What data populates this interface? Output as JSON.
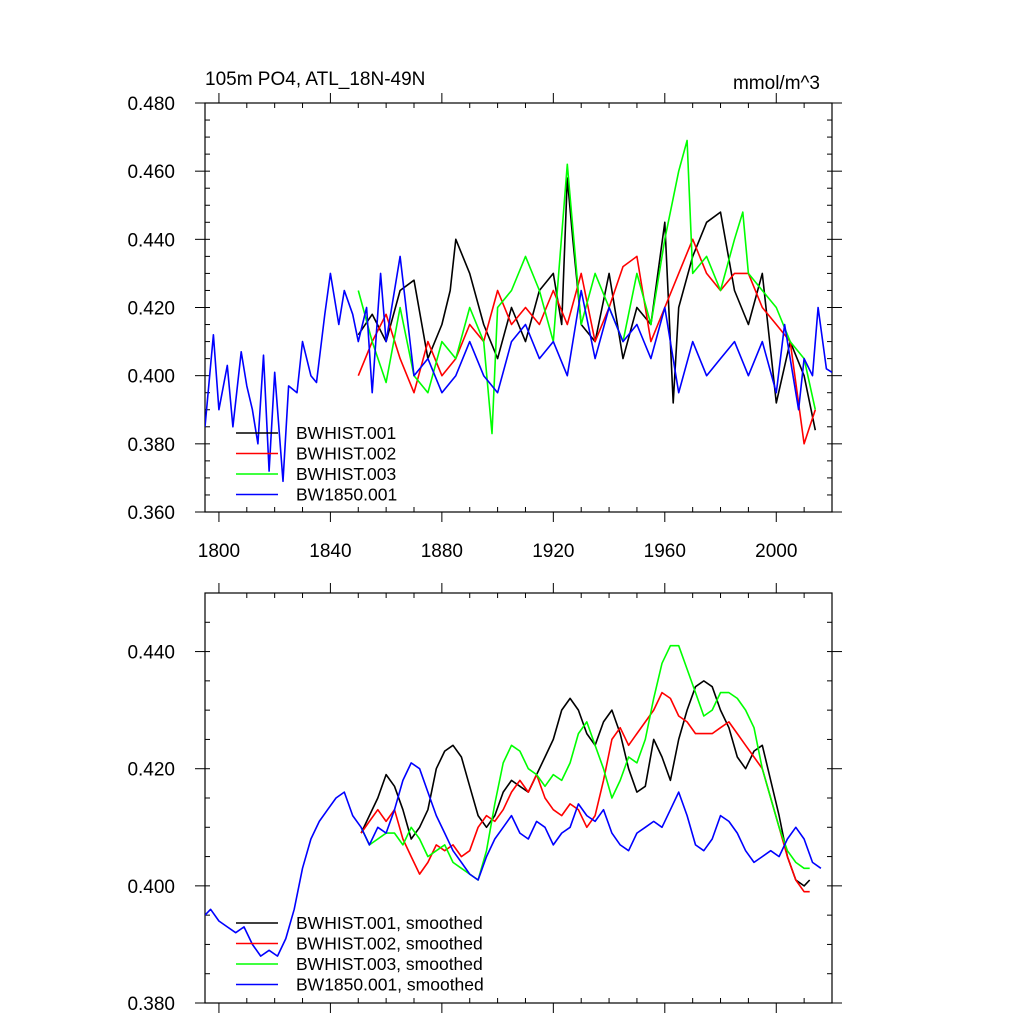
{
  "chart_data": [
    {
      "type": "line",
      "title": "105m PO4, ATL_18N-49N",
      "units": "mmol/m^3",
      "xlim": [
        1795,
        2020
      ],
      "ylim": [
        0.36,
        0.48
      ],
      "xticks": [
        1800,
        1840,
        1880,
        1920,
        1960,
        2000
      ],
      "yticks": [
        0.36,
        0.38,
        0.4,
        0.42,
        0.44,
        0.46,
        0.48
      ],
      "xtick_labels": [
        "1800",
        "1840",
        "1880",
        "1920",
        "1960",
        "2000"
      ],
      "ytick_labels": [
        "0.360",
        "0.380",
        "0.400",
        "0.420",
        "0.440",
        "0.460",
        "0.480"
      ],
      "legend_location": "lower-left",
      "series": [
        {
          "name": "BWHIST.001",
          "color": "#000000",
          "x": [
            1850,
            1855,
            1860,
            1865,
            1870,
            1875,
            1880,
            1883,
            1885,
            1890,
            1895,
            1900,
            1905,
            1910,
            1915,
            1920,
            1923,
            1925,
            1927,
            1930,
            1935,
            1940,
            1945,
            1950,
            1955,
            1960,
            1963,
            1965,
            1970,
            1975,
            1980,
            1985,
            1990,
            1995,
            2000,
            2005,
            2010,
            2014
          ],
          "y": [
            0.412,
            0.418,
            0.41,
            0.425,
            0.428,
            0.405,
            0.415,
            0.425,
            0.44,
            0.43,
            0.415,
            0.405,
            0.42,
            0.41,
            0.425,
            0.43,
            0.415,
            0.458,
            0.44,
            0.415,
            0.41,
            0.43,
            0.405,
            0.42,
            0.415,
            0.445,
            0.392,
            0.42,
            0.435,
            0.445,
            0.448,
            0.425,
            0.415,
            0.43,
            0.392,
            0.41,
            0.4,
            0.384
          ]
        },
        {
          "name": "BWHIST.002",
          "color": "#ff0000",
          "x": [
            1850,
            1855,
            1860,
            1865,
            1870,
            1875,
            1880,
            1885,
            1890,
            1895,
            1900,
            1905,
            1910,
            1915,
            1920,
            1925,
            1930,
            1935,
            1940,
            1945,
            1950,
            1955,
            1960,
            1965,
            1970,
            1975,
            1980,
            1985,
            1990,
            1995,
            2000,
            2005,
            2010,
            2014
          ],
          "y": [
            0.4,
            0.41,
            0.418,
            0.405,
            0.395,
            0.41,
            0.4,
            0.405,
            0.415,
            0.41,
            0.425,
            0.415,
            0.42,
            0.415,
            0.425,
            0.415,
            0.43,
            0.41,
            0.42,
            0.432,
            0.435,
            0.41,
            0.42,
            0.43,
            0.44,
            0.43,
            0.425,
            0.43,
            0.43,
            0.42,
            0.415,
            0.41,
            0.38,
            0.39
          ]
        },
        {
          "name": "BWHIST.003",
          "color": "#00ff00",
          "x": [
            1850,
            1855,
            1860,
            1865,
            1870,
            1875,
            1880,
            1885,
            1890,
            1895,
            1898,
            1900,
            1905,
            1910,
            1915,
            1920,
            1925,
            1930,
            1935,
            1940,
            1945,
            1950,
            1955,
            1960,
            1965,
            1968,
            1970,
            1975,
            1980,
            1985,
            1988,
            1990,
            1995,
            2000,
            2005,
            2010,
            2014
          ],
          "y": [
            0.425,
            0.41,
            0.398,
            0.42,
            0.4,
            0.395,
            0.41,
            0.405,
            0.42,
            0.41,
            0.383,
            0.42,
            0.425,
            0.435,
            0.425,
            0.41,
            0.462,
            0.415,
            0.43,
            0.42,
            0.41,
            0.43,
            0.415,
            0.44,
            0.46,
            0.469,
            0.43,
            0.435,
            0.425,
            0.44,
            0.448,
            0.43,
            0.425,
            0.42,
            0.41,
            0.405,
            0.39
          ]
        },
        {
          "name": "BW1850.001",
          "color": "#0000ff",
          "x": [
            1795,
            1798,
            1800,
            1803,
            1805,
            1808,
            1810,
            1812,
            1814,
            1816,
            1818,
            1820,
            1823,
            1825,
            1828,
            1830,
            1833,
            1835,
            1838,
            1840,
            1843,
            1845,
            1848,
            1850,
            1853,
            1855,
            1858,
            1860,
            1865,
            1870,
            1875,
            1880,
            1885,
            1890,
            1895,
            1900,
            1905,
            1910,
            1915,
            1920,
            1925,
            1930,
            1935,
            1940,
            1945,
            1950,
            1955,
            1960,
            1965,
            1970,
            1975,
            1980,
            1985,
            1990,
            1995,
            2000,
            2003,
            2005,
            2008,
            2010,
            2013,
            2015,
            2018,
            2020
          ],
          "y": [
            0.385,
            0.412,
            0.39,
            0.403,
            0.385,
            0.407,
            0.397,
            0.39,
            0.38,
            0.406,
            0.372,
            0.401,
            0.369,
            0.397,
            0.395,
            0.41,
            0.4,
            0.398,
            0.418,
            0.43,
            0.415,
            0.425,
            0.418,
            0.41,
            0.42,
            0.395,
            0.43,
            0.41,
            0.435,
            0.4,
            0.405,
            0.395,
            0.4,
            0.41,
            0.4,
            0.395,
            0.41,
            0.415,
            0.405,
            0.41,
            0.4,
            0.425,
            0.405,
            0.42,
            0.41,
            0.415,
            0.405,
            0.42,
            0.395,
            0.41,
            0.4,
            0.405,
            0.41,
            0.4,
            0.41,
            0.395,
            0.415,
            0.405,
            0.39,
            0.405,
            0.4,
            0.42,
            0.402,
            0.401
          ]
        }
      ]
    },
    {
      "type": "line",
      "xlim": [
        1795,
        2020
      ],
      "ylim": [
        0.38,
        0.45
      ],
      "xticks": [
        1800,
        1840,
        1880,
        1920,
        1960,
        2000
      ],
      "yticks": [
        0.38,
        0.4,
        0.42,
        0.44
      ],
      "ytick_labels": [
        "0.380",
        "0.400",
        "0.420",
        "0.440"
      ],
      "legend_location": "lower-left",
      "series": [
        {
          "name": "BWHIST.001, smoothed",
          "color": "#000000",
          "x": [
            1851,
            1854,
            1857,
            1860,
            1863,
            1866,
            1869,
            1872,
            1875,
            1878,
            1881,
            1884,
            1887,
            1890,
            1893,
            1896,
            1899,
            1902,
            1905,
            1908,
            1911,
            1914,
            1917,
            1920,
            1923,
            1926,
            1929,
            1932,
            1935,
            1938,
            1941,
            1944,
            1947,
            1950,
            1953,
            1956,
            1959,
            1962,
            1965,
            1968,
            1971,
            1974,
            1977,
            1980,
            1983,
            1986,
            1989,
            1992,
            1995,
            1998,
            2001,
            2004,
            2007,
            2010,
            2012
          ],
          "y": [
            0.409,
            0.412,
            0.415,
            0.419,
            0.417,
            0.413,
            0.408,
            0.41,
            0.413,
            0.42,
            0.423,
            0.424,
            0.422,
            0.417,
            0.412,
            0.41,
            0.412,
            0.416,
            0.418,
            0.417,
            0.416,
            0.419,
            0.422,
            0.425,
            0.43,
            0.432,
            0.43,
            0.426,
            0.424,
            0.428,
            0.43,
            0.426,
            0.42,
            0.416,
            0.417,
            0.425,
            0.422,
            0.418,
            0.425,
            0.43,
            0.434,
            0.435,
            0.434,
            0.43,
            0.427,
            0.422,
            0.42,
            0.423,
            0.424,
            0.418,
            0.412,
            0.405,
            0.401,
            0.4,
            0.401
          ]
        },
        {
          "name": "BWHIST.002, smoothed",
          "color": "#ff0000",
          "x": [
            1851,
            1854,
            1857,
            1860,
            1863,
            1866,
            1869,
            1872,
            1875,
            1878,
            1881,
            1884,
            1887,
            1890,
            1893,
            1896,
            1899,
            1902,
            1905,
            1908,
            1911,
            1914,
            1917,
            1920,
            1923,
            1926,
            1929,
            1932,
            1935,
            1938,
            1941,
            1944,
            1947,
            1950,
            1953,
            1956,
            1959,
            1962,
            1965,
            1968,
            1971,
            1974,
            1977,
            1980,
            1983,
            1986,
            1989,
            1992,
            1995,
            1998,
            2001,
            2004,
            2007,
            2010,
            2012
          ],
          "y": [
            0.409,
            0.411,
            0.413,
            0.411,
            0.413,
            0.408,
            0.405,
            0.402,
            0.404,
            0.407,
            0.406,
            0.407,
            0.405,
            0.406,
            0.41,
            0.412,
            0.411,
            0.413,
            0.416,
            0.418,
            0.416,
            0.419,
            0.415,
            0.413,
            0.412,
            0.414,
            0.413,
            0.41,
            0.412,
            0.418,
            0.425,
            0.427,
            0.424,
            0.426,
            0.428,
            0.43,
            0.433,
            0.432,
            0.429,
            0.428,
            0.426,
            0.426,
            0.426,
            0.427,
            0.428,
            0.426,
            0.424,
            0.422,
            0.42,
            0.415,
            0.41,
            0.405,
            0.401,
            0.399,
            0.399
          ]
        },
        {
          "name": "BWHIST.003, smoothed",
          "color": "#00ff00",
          "x": [
            1851,
            1854,
            1857,
            1860,
            1863,
            1866,
            1869,
            1872,
            1875,
            1878,
            1881,
            1884,
            1887,
            1890,
            1893,
            1896,
            1899,
            1902,
            1905,
            1908,
            1911,
            1914,
            1917,
            1920,
            1923,
            1926,
            1929,
            1932,
            1935,
            1938,
            1941,
            1944,
            1947,
            1950,
            1953,
            1956,
            1959,
            1962,
            1965,
            1968,
            1971,
            1974,
            1977,
            1980,
            1983,
            1986,
            1989,
            1992,
            1995,
            1998,
            2001,
            2004,
            2007,
            2010,
            2012
          ],
          "y": [
            0.41,
            0.407,
            0.408,
            0.409,
            0.409,
            0.407,
            0.41,
            0.408,
            0.405,
            0.406,
            0.407,
            0.404,
            0.403,
            0.402,
            0.401,
            0.406,
            0.414,
            0.421,
            0.424,
            0.423,
            0.42,
            0.419,
            0.417,
            0.419,
            0.418,
            0.421,
            0.426,
            0.428,
            0.424,
            0.42,
            0.415,
            0.418,
            0.422,
            0.421,
            0.425,
            0.432,
            0.438,
            0.441,
            0.441,
            0.437,
            0.433,
            0.429,
            0.43,
            0.433,
            0.433,
            0.432,
            0.43,
            0.427,
            0.42,
            0.415,
            0.41,
            0.406,
            0.404,
            0.403,
            0.403
          ]
        },
        {
          "name": "BW1850.001, smoothed",
          "color": "#0000ff",
          "x": [
            1795,
            1797,
            1800,
            1803,
            1806,
            1809,
            1812,
            1815,
            1818,
            1821,
            1824,
            1827,
            1830,
            1833,
            1836,
            1839,
            1842,
            1845,
            1848,
            1851,
            1854,
            1857,
            1860,
            1863,
            1866,
            1869,
            1872,
            1875,
            1878,
            1881,
            1884,
            1887,
            1890,
            1893,
            1896,
            1899,
            1902,
            1905,
            1908,
            1911,
            1914,
            1917,
            1920,
            1923,
            1926,
            1929,
            1932,
            1935,
            1938,
            1941,
            1944,
            1947,
            1950,
            1953,
            1956,
            1959,
            1962,
            1965,
            1968,
            1971,
            1974,
            1977,
            1980,
            1983,
            1986,
            1989,
            1992,
            1995,
            1998,
            2001,
            2004,
            2007,
            2010,
            2013,
            2016
          ],
          "y": [
            0.395,
            0.396,
            0.394,
            0.393,
            0.392,
            0.393,
            0.39,
            0.388,
            0.389,
            0.388,
            0.391,
            0.396,
            0.403,
            0.408,
            0.411,
            0.413,
            0.415,
            0.416,
            0.412,
            0.41,
            0.407,
            0.41,
            0.409,
            0.413,
            0.418,
            0.421,
            0.42,
            0.416,
            0.412,
            0.409,
            0.406,
            0.404,
            0.402,
            0.401,
            0.405,
            0.408,
            0.41,
            0.412,
            0.409,
            0.408,
            0.411,
            0.41,
            0.407,
            0.409,
            0.41,
            0.414,
            0.412,
            0.411,
            0.413,
            0.409,
            0.407,
            0.406,
            0.409,
            0.41,
            0.411,
            0.41,
            0.413,
            0.416,
            0.412,
            0.407,
            0.406,
            0.408,
            0.412,
            0.411,
            0.409,
            0.406,
            0.404,
            0.405,
            0.406,
            0.405,
            0.408,
            0.41,
            0.408,
            0.404,
            0.403
          ]
        }
      ]
    }
  ]
}
